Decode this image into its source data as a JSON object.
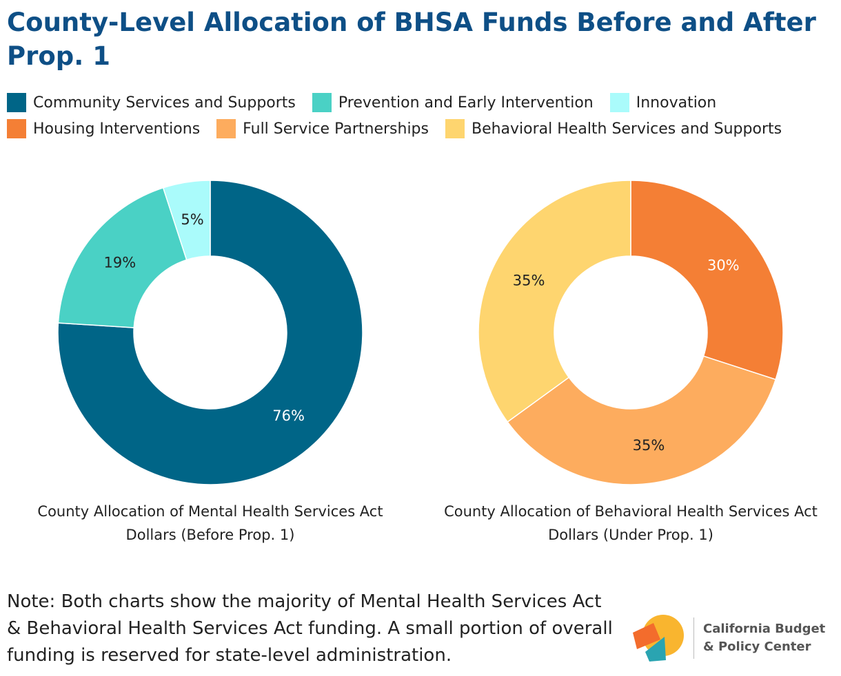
{
  "title": "County-Level Allocation of BHSA Funds Before and After Prop. 1",
  "legend": [
    {
      "label": "Community Services and Supports",
      "color": "#006587"
    },
    {
      "label": "Prevention and Early Intervention",
      "color": "#4ad1c5"
    },
    {
      "label": "Innovation",
      "color": "#aafbfb"
    },
    {
      "label": "Housing Interventions",
      "color": "#f47f35"
    },
    {
      "label": "Full Service Partnerships",
      "color": "#fdac5e"
    },
    {
      "label": "Behavioral Health Services and Supports",
      "color": "#fed56f"
    }
  ],
  "chart_data": [
    {
      "type": "pie",
      "title": "County Allocation of Mental Health Services Act Dollars (Before Prop. 1)",
      "categories": [
        "Community Services and Supports",
        "Prevention and Early Intervention",
        "Innovation"
      ],
      "values": [
        76,
        19,
        5
      ],
      "labels": [
        "76%",
        "19%",
        "5%"
      ],
      "colors": [
        "#006587",
        "#4ad1c5",
        "#aafbfb"
      ],
      "label_colors": [
        "#ffffff",
        "#222222",
        "#222222"
      ]
    },
    {
      "type": "pie",
      "title": "County Allocation of Behavioral Health Services Act Dollars (Under Prop. 1)",
      "categories": [
        "Housing Interventions",
        "Full Service Partnerships",
        "Behavioral Health Services and Supports"
      ],
      "values": [
        30,
        35,
        35
      ],
      "labels": [
        "30%",
        "35%",
        "35%"
      ],
      "colors": [
        "#f47f35",
        "#fdac5e",
        "#fed56f"
      ],
      "label_colors": [
        "#ffffff",
        "#222222",
        "#222222"
      ]
    }
  ],
  "note": "Note: Both charts show the majority of Mental Health Services Act & Behavioral Health Services Act funding. A small portion of overall funding is reserved for state-level administration.",
  "logo": {
    "name": "California Budget & Policy Center",
    "line1": "California Budget",
    "line2": "& Policy Center",
    "colors": [
      "#f9b52f",
      "#f36c2c",
      "#2aa4b1"
    ]
  }
}
